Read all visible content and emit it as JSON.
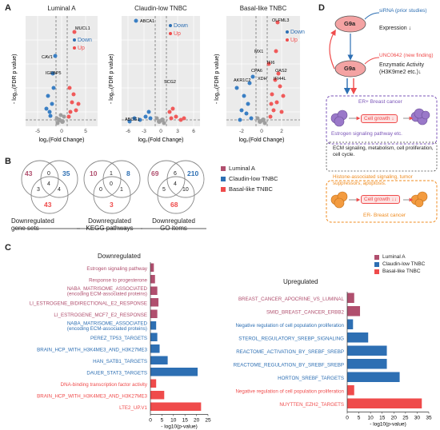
{
  "panelA": {
    "letter": "A",
    "plots": [
      {
        "title": "Luminal A",
        "down_label": "Down",
        "up_label": "Up",
        "genes": [
          "MUCL1",
          "CAV1",
          "IGFBP5"
        ],
        "xticks": [
          "-5",
          "0",
          "5"
        ],
        "xlabel": "log2(Fold Change)"
      },
      {
        "title": "Claudin-low TNBC",
        "down_label": "Down",
        "up_label": "Up",
        "genes": [
          "ABCA1",
          "SCG2",
          "ABCG1"
        ],
        "xticks": [
          "-6",
          "-3",
          "0",
          "3",
          "6"
        ],
        "xlabel": "log2(Fold Change)"
      },
      {
        "title": "Basal-like TNBC",
        "down_label": "Down",
        "up_label": "Up",
        "genes": [
          "OLFML3",
          "MX1",
          "IFI6",
          "OAS2",
          "CPA6",
          "XDH",
          "IFI44L",
          "AKR1C2"
        ],
        "xticks": [
          "-2",
          "0",
          "2"
        ],
        "xlabel": "log2(Fold Change)"
      }
    ],
    "ylabel": "- log10(FDR p value)"
  },
  "panelB": {
    "letter": "B",
    "venns": [
      {
        "left": "43",
        "right": "35",
        "bottom": "43",
        "lr": "0",
        "lb": "3",
        "rb": "4",
        "center": "4",
        "caption": "Downregulated\ngene sets"
      },
      {
        "left": "10",
        "right": "8",
        "bottom": "3",
        "lr": "1",
        "lb": "0",
        "rb": "1",
        "center": "0",
        "caption": "Downregulated\nKEGG pathways"
      },
      {
        "left": "69",
        "right": "210",
        "bottom": "68",
        "lr": "6",
        "lb": "5",
        "rb": "10",
        "center": "4",
        "caption": "Downregulated\nGO items"
      }
    ],
    "legend": [
      {
        "label": "Luminal A",
        "color": "#b04f6e"
      },
      {
        "label": "Claudin-low TNBC",
        "color": "#2d6fb3"
      },
      {
        "label": "Basal-like TNBC",
        "color": "#ef4b4b"
      }
    ]
  },
  "panelC": {
    "letter": "C",
    "left_title": "Downregulated",
    "right_title": "Upregulated",
    "legend": [
      {
        "label": "Luminal A",
        "color": "#b04f6e"
      },
      {
        "label": "Claudin-low TNBC",
        "color": "#2d6fb3"
      },
      {
        "label": "Basal-like TNBC",
        "color": "#ef4b4b"
      }
    ],
    "xlabel": "- log10(p-value)"
  },
  "panelD": {
    "letter": "D",
    "g9a_label": "G9a",
    "sirna": "siRNA (prior studies)",
    "expression": "Expression ↓",
    "unc": "UNC0642 (new finding)",
    "enzymatic": "Enzymatic Activity",
    "h3k9": "(H3K9me2 etc.)↓",
    "er_pos": "ER+ Breast cancer",
    "cell_growth1": "Cell growth ↓",
    "estrogen": "Estrogen signaling pathway etc.",
    "ecm": "ECM signaling, metabolism, cell proliferation, cell cycle.",
    "histone": "Histone-associated signaling, tumor suppressors, apoptosis.",
    "cell_growth2": "Cell growth ↓↓",
    "er_neg": "ER- Breast cancer"
  },
  "chart_data": [
    {
      "type": "bar",
      "title": "Downregulated",
      "xlabel": "- log10(p-value)",
      "xlim": [
        0,
        25
      ],
      "xticks": [
        0,
        5,
        10,
        15,
        20,
        25
      ],
      "categories": [
        "Estrogen signaling pathway",
        "Response to progesterone",
        "NABA_MATRISOME_ASSOCIATED\n(encoding ECM-associated proteins)",
        "LI_ESTROGENE_BIDIRECTIONAL_E2_RESPONSE",
        "LI_ESTROGENE_MCF7_E2_RESPONSE",
        "NABA_MATRISOME_ASSOCIATED\n(encoding ECM-associated proteins)",
        "PEREZ_TP53_TARGETS",
        "BRAIN_HCP_WITH_H3K4ME3_AND_H3K27ME3",
        "HAN_SATB1_TARGETS",
        "DAUER_STAT3_TARGETS",
        "DNA-binding transcription factor activity",
        "BRAIN_HCP_WITH_H3K4ME3_AND_H3K27ME3",
        "LTE2_UP.V1"
      ],
      "values": [
        1.5,
        2,
        3,
        3.5,
        3,
        2.5,
        3,
        4,
        7.5,
        20.5,
        2.5,
        6,
        22
      ],
      "groups": [
        "Luminal A",
        "Luminal A",
        "Luminal A",
        "Luminal A",
        "Luminal A",
        "Claudin-low TNBC",
        "Claudin-low TNBC",
        "Claudin-low TNBC",
        "Claudin-low TNBC",
        "Claudin-low TNBC",
        "Basal-like TNBC",
        "Basal-like TNBC",
        "Basal-like TNBC"
      ]
    },
    {
      "type": "bar",
      "title": "Upregulated",
      "xlabel": "- log10(p-value)",
      "xlim": [
        0,
        35
      ],
      "xticks": [
        0,
        5,
        10,
        15,
        20,
        25,
        30,
        35
      ],
      "categories": [
        "BREAST_CANCER_APOCRINE_VS_LUMINAL",
        "SMID_BREAST_CANCER_ERBB2",
        "Negative regulation of cell population proliferation",
        "STEROL_REGULATORY_SREBP_SIGNALING",
        "REACTOME_ACTIVATION_BY_SREBF_SREBP",
        "REACTOME_REGULATION_BY_SREBF_SREBP",
        "HORTON_SREBF_TARGETS",
        "Negative regulation of cell population proliferation",
        "NUYTTEN_EZH2_TARGETS"
      ],
      "values": [
        3,
        5.5,
        2.5,
        9,
        17,
        17,
        22.5,
        3,
        32
      ],
      "groups": [
        "Luminal A",
        "Luminal A",
        "Claudin-low TNBC",
        "Claudin-low TNBC",
        "Claudin-low TNBC",
        "Claudin-low TNBC",
        "Claudin-low TNBC",
        "Basal-like TNBC",
        "Basal-like TNBC"
      ]
    }
  ]
}
